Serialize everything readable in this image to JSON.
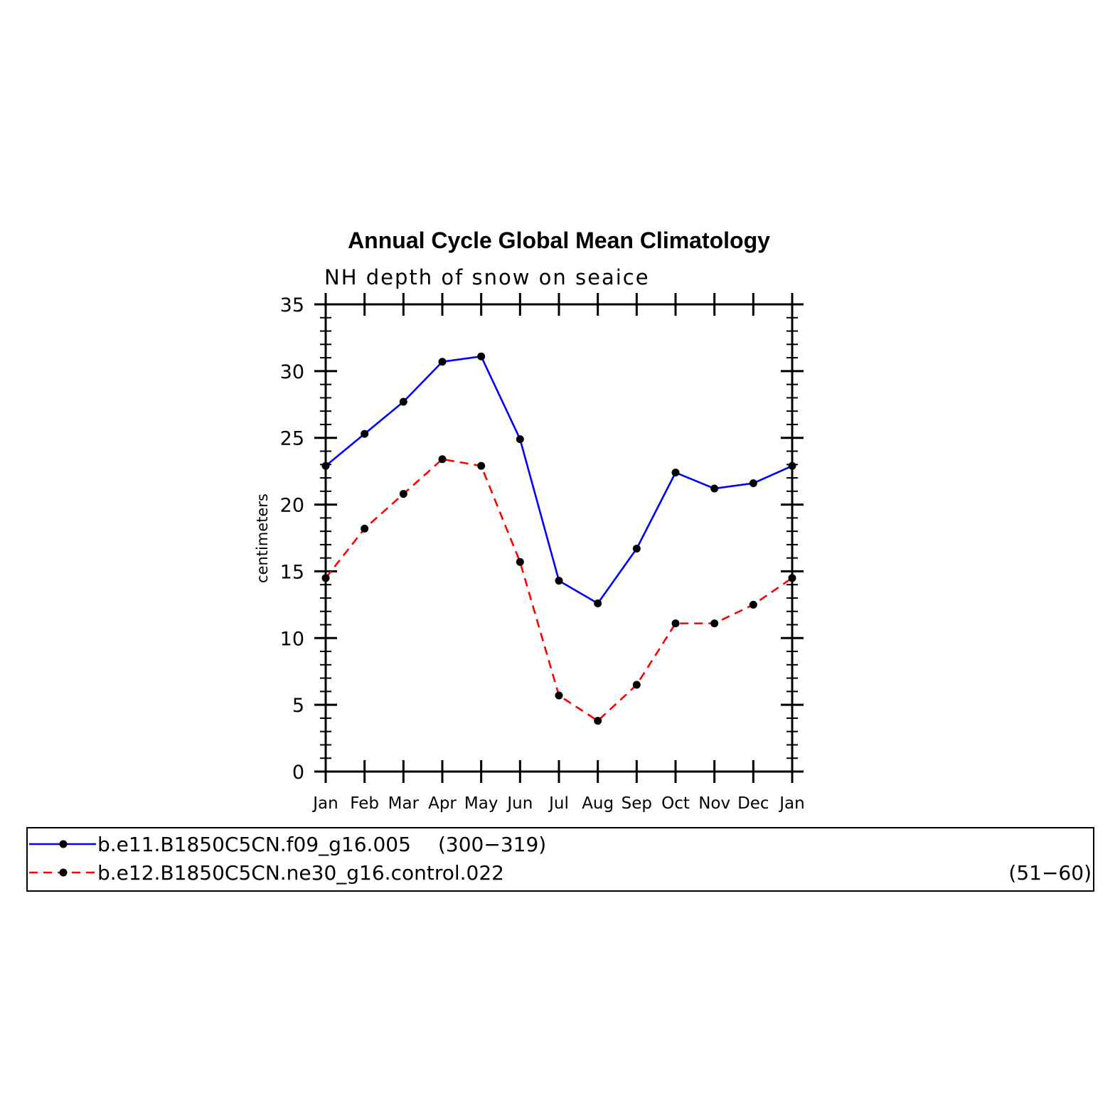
{
  "chart_data": {
    "type": "line",
    "title": "Annual Cycle Global Mean Climatology",
    "subtitle": "NH depth of snow on seaice",
    "xlabel": "",
    "ylabel": "centimeters",
    "categories": [
      "Jan",
      "Feb",
      "Mar",
      "Apr",
      "May",
      "Jun",
      "Jul",
      "Aug",
      "Sep",
      "Oct",
      "Nov",
      "Dec",
      "Jan"
    ],
    "ylim": [
      0,
      35
    ],
    "yticks": [
      0,
      5,
      10,
      15,
      20,
      25,
      30,
      35
    ],
    "y_minor_step": 1,
    "series": [
      {
        "name": "b.e11.B1850C5CN.f09_g16.005",
        "range_label": "(300−319)",
        "color": "#0000ff",
        "dash": "solid",
        "values": [
          22.9,
          25.3,
          27.7,
          30.7,
          31.1,
          24.9,
          14.3,
          12.6,
          16.7,
          22.4,
          21.2,
          21.6,
          22.9
        ]
      },
      {
        "name": "b.e12.B1850C5CN.ne30_g16.control.022",
        "range_label": "(51−60)",
        "color": "#ff0000",
        "dash": "dashed",
        "values": [
          14.5,
          18.2,
          20.8,
          23.4,
          22.9,
          15.7,
          5.7,
          3.8,
          6.5,
          11.1,
          11.1,
          12.5,
          14.5
        ]
      }
    ],
    "marker_color": "#000000",
    "legend_position": "bottom",
    "grid": false
  }
}
